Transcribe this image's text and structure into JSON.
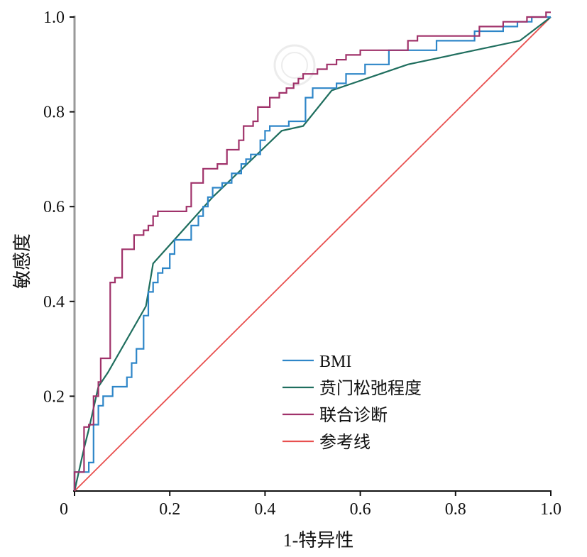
{
  "chart_data": {
    "type": "line",
    "title": "",
    "xlabel": "1-特异性",
    "ylabel": "敏感度",
    "xlim": [
      0,
      1
    ],
    "ylim": [
      0,
      1
    ],
    "x_ticks": [
      {
        "value": 0,
        "label": "0"
      },
      {
        "value": 0.2,
        "label": "0.2"
      },
      {
        "value": 0.4,
        "label": "0.4"
      },
      {
        "value": 0.6,
        "label": "0.6"
      },
      {
        "value": 0.8,
        "label": "0.8"
      },
      {
        "value": 1.0,
        "label": "1.0"
      }
    ],
    "y_ticks": [
      {
        "value": 0.2,
        "label": "0.2"
      },
      {
        "value": 0.4,
        "label": "0.4"
      },
      {
        "value": 0.6,
        "label": "0.6"
      },
      {
        "value": 0.8,
        "label": "0.8"
      },
      {
        "value": 1.0,
        "label": "1.0"
      }
    ],
    "grid": false,
    "legend_position": "bottom-right",
    "series": [
      {
        "name": "BMI",
        "color": "#2E86C8",
        "step": true,
        "points": [
          [
            0,
            0
          ],
          [
            0,
            0.04
          ],
          [
            0.03,
            0.04
          ],
          [
            0.03,
            0.06
          ],
          [
            0.04,
            0.06
          ],
          [
            0.04,
            0.14
          ],
          [
            0.05,
            0.14
          ],
          [
            0.05,
            0.18
          ],
          [
            0.06,
            0.18
          ],
          [
            0.06,
            0.2
          ],
          [
            0.08,
            0.2
          ],
          [
            0.08,
            0.22
          ],
          [
            0.11,
            0.22
          ],
          [
            0.11,
            0.24
          ],
          [
            0.12,
            0.24
          ],
          [
            0.12,
            0.27
          ],
          [
            0.13,
            0.27
          ],
          [
            0.13,
            0.3
          ],
          [
            0.145,
            0.3
          ],
          [
            0.145,
            0.37
          ],
          [
            0.155,
            0.37
          ],
          [
            0.155,
            0.42
          ],
          [
            0.165,
            0.42
          ],
          [
            0.165,
            0.44
          ],
          [
            0.175,
            0.44
          ],
          [
            0.175,
            0.46
          ],
          [
            0.185,
            0.46
          ],
          [
            0.185,
            0.47
          ],
          [
            0.2,
            0.47
          ],
          [
            0.2,
            0.5
          ],
          [
            0.21,
            0.5
          ],
          [
            0.21,
            0.53
          ],
          [
            0.245,
            0.53
          ],
          [
            0.245,
            0.56
          ],
          [
            0.26,
            0.56
          ],
          [
            0.26,
            0.58
          ],
          [
            0.27,
            0.58
          ],
          [
            0.27,
            0.6
          ],
          [
            0.28,
            0.6
          ],
          [
            0.28,
            0.62
          ],
          [
            0.29,
            0.62
          ],
          [
            0.29,
            0.64
          ],
          [
            0.31,
            0.64
          ],
          [
            0.31,
            0.65
          ],
          [
            0.33,
            0.65
          ],
          [
            0.33,
            0.67
          ],
          [
            0.35,
            0.67
          ],
          [
            0.35,
            0.69
          ],
          [
            0.36,
            0.69
          ],
          [
            0.36,
            0.7
          ],
          [
            0.37,
            0.7
          ],
          [
            0.37,
            0.71
          ],
          [
            0.39,
            0.71
          ],
          [
            0.39,
            0.74
          ],
          [
            0.4,
            0.74
          ],
          [
            0.4,
            0.76
          ],
          [
            0.41,
            0.76
          ],
          [
            0.41,
            0.77
          ],
          [
            0.45,
            0.77
          ],
          [
            0.45,
            0.78
          ],
          [
            0.485,
            0.78
          ],
          [
            0.485,
            0.83
          ],
          [
            0.5,
            0.83
          ],
          [
            0.5,
            0.85
          ],
          [
            0.55,
            0.85
          ],
          [
            0.55,
            0.86
          ],
          [
            0.57,
            0.86
          ],
          [
            0.57,
            0.88
          ],
          [
            0.61,
            0.88
          ],
          [
            0.61,
            0.9
          ],
          [
            0.66,
            0.9
          ],
          [
            0.66,
            0.93
          ],
          [
            0.76,
            0.93
          ],
          [
            0.76,
            0.95
          ],
          [
            0.84,
            0.95
          ],
          [
            0.84,
            0.97
          ],
          [
            0.9,
            0.97
          ],
          [
            0.9,
            0.98
          ],
          [
            0.93,
            0.98
          ],
          [
            0.93,
            0.99
          ],
          [
            0.96,
            0.99
          ],
          [
            0.96,
            1.0
          ],
          [
            1.0,
            1.0
          ]
        ]
      },
      {
        "name": "贲门松弛程度",
        "color": "#1F6E5E",
        "step": false,
        "points": [
          [
            0,
            0
          ],
          [
            0.02,
            0.09
          ],
          [
            0.03,
            0.13
          ],
          [
            0.05,
            0.22
          ],
          [
            0.07,
            0.25
          ],
          [
            0.15,
            0.39
          ],
          [
            0.165,
            0.48
          ],
          [
            0.29,
            0.62
          ],
          [
            0.435,
            0.76
          ],
          [
            0.48,
            0.77
          ],
          [
            0.54,
            0.845
          ],
          [
            0.7,
            0.9
          ],
          [
            0.935,
            0.95
          ],
          [
            1.0,
            1.0
          ]
        ]
      },
      {
        "name": "联合诊断",
        "color": "#A0326A",
        "step": true,
        "points": [
          [
            0,
            0
          ],
          [
            0,
            0.04
          ],
          [
            0.02,
            0.04
          ],
          [
            0.02,
            0.135
          ],
          [
            0.03,
            0.135
          ],
          [
            0.03,
            0.14
          ],
          [
            0.04,
            0.14
          ],
          [
            0.04,
            0.2
          ],
          [
            0.05,
            0.2
          ],
          [
            0.05,
            0.23
          ],
          [
            0.055,
            0.23
          ],
          [
            0.055,
            0.28
          ],
          [
            0.075,
            0.28
          ],
          [
            0.075,
            0.44
          ],
          [
            0.085,
            0.44
          ],
          [
            0.085,
            0.45
          ],
          [
            0.1,
            0.45
          ],
          [
            0.1,
            0.51
          ],
          [
            0.125,
            0.51
          ],
          [
            0.125,
            0.54
          ],
          [
            0.145,
            0.54
          ],
          [
            0.145,
            0.55
          ],
          [
            0.155,
            0.55
          ],
          [
            0.155,
            0.56
          ],
          [
            0.165,
            0.56
          ],
          [
            0.165,
            0.58
          ],
          [
            0.175,
            0.58
          ],
          [
            0.175,
            0.59
          ],
          [
            0.235,
            0.59
          ],
          [
            0.235,
            0.6
          ],
          [
            0.245,
            0.6
          ],
          [
            0.245,
            0.65
          ],
          [
            0.27,
            0.65
          ],
          [
            0.27,
            0.68
          ],
          [
            0.3,
            0.68
          ],
          [
            0.3,
            0.69
          ],
          [
            0.32,
            0.69
          ],
          [
            0.32,
            0.72
          ],
          [
            0.345,
            0.72
          ],
          [
            0.345,
            0.74
          ],
          [
            0.355,
            0.74
          ],
          [
            0.355,
            0.77
          ],
          [
            0.375,
            0.77
          ],
          [
            0.375,
            0.78
          ],
          [
            0.385,
            0.78
          ],
          [
            0.385,
            0.81
          ],
          [
            0.41,
            0.81
          ],
          [
            0.41,
            0.83
          ],
          [
            0.43,
            0.83
          ],
          [
            0.43,
            0.84
          ],
          [
            0.445,
            0.84
          ],
          [
            0.445,
            0.85
          ],
          [
            0.46,
            0.85
          ],
          [
            0.46,
            0.86
          ],
          [
            0.47,
            0.86
          ],
          [
            0.47,
            0.87
          ],
          [
            0.48,
            0.87
          ],
          [
            0.48,
            0.88
          ],
          [
            0.51,
            0.88
          ],
          [
            0.51,
            0.89
          ],
          [
            0.53,
            0.89
          ],
          [
            0.53,
            0.9
          ],
          [
            0.55,
            0.9
          ],
          [
            0.55,
            0.91
          ],
          [
            0.57,
            0.91
          ],
          [
            0.57,
            0.92
          ],
          [
            0.6,
            0.92
          ],
          [
            0.6,
            0.93
          ],
          [
            0.7,
            0.93
          ],
          [
            0.7,
            0.95
          ],
          [
            0.72,
            0.95
          ],
          [
            0.72,
            0.96
          ],
          [
            0.85,
            0.96
          ],
          [
            0.85,
            0.98
          ],
          [
            0.9,
            0.98
          ],
          [
            0.9,
            0.99
          ],
          [
            0.95,
            0.99
          ],
          [
            0.95,
            1.0
          ],
          [
            0.99,
            1.0
          ],
          [
            0.99,
            1.01
          ],
          [
            1.0,
            1.01
          ]
        ]
      },
      {
        "name": "参考线",
        "color": "#E8504F",
        "step": false,
        "points": [
          [
            0,
            0
          ],
          [
            1,
            1
          ]
        ]
      }
    ]
  }
}
